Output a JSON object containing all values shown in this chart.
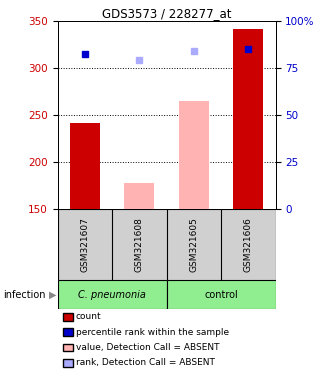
{
  "title": "GDS3573 / 228277_at",
  "samples": [
    "GSM321607",
    "GSM321608",
    "GSM321605",
    "GSM321606"
  ],
  "bar_bottom": 150,
  "ylim": [
    150,
    350
  ],
  "y2lim": [
    0,
    100
  ],
  "yticks_left": [
    150,
    200,
    250,
    300,
    350
  ],
  "yticks_right": [
    0,
    25,
    50,
    75,
    100
  ],
  "ytick_labels_right": [
    "0",
    "25",
    "50",
    "75",
    "100%"
  ],
  "bars_red": [
    242,
    null,
    null,
    342
  ],
  "bars_pink": [
    null,
    178,
    265,
    null
  ],
  "dots_blue_dark": [
    315,
    null,
    null,
    320
  ],
  "dots_blue_light": [
    null,
    309,
    318,
    null
  ],
  "legend_colors": [
    "#cc0000",
    "#0000cc",
    "#ffb3b3",
    "#aaaaff"
  ],
  "legend_labels": [
    "count",
    "percentile rank within the sample",
    "value, Detection Call = ABSENT",
    "rank, Detection Call = ABSENT"
  ],
  "infection_label": "infection",
  "ylabel_left_color": "#cc0000",
  "ylabel_right_color": "#0000cc",
  "background_color": "#ffffff",
  "bar_width": 0.55
}
